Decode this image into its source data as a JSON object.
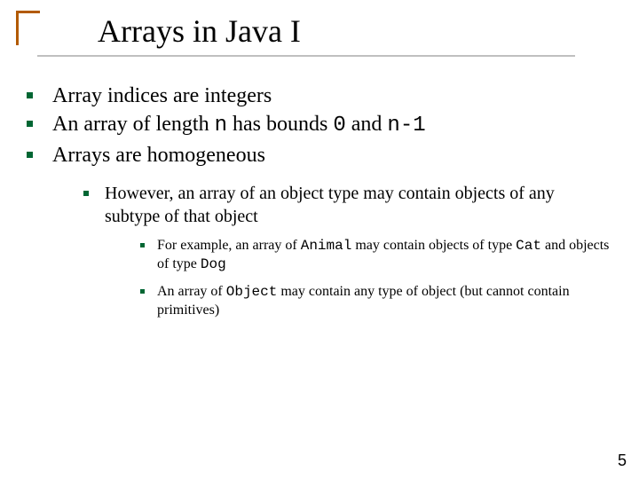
{
  "colors": {
    "accent": "#b25a00",
    "bullet_lvl1": "#006633",
    "bullet_lvl2": "#006633",
    "bullet_lvl3": "#006633",
    "underline": "#c0c0c0",
    "background": "#ffffff",
    "text": "#000000"
  },
  "title": "Arrays in Java I",
  "page_number": "5",
  "points": {
    "p1": "Array indices are integers",
    "p2_a": "An array of length ",
    "p2_n": "n",
    "p2_b": " has bounds ",
    "p2_zero": "0",
    "p2_c": " and ",
    "p2_n1": "n-1",
    "p3": "Arrays are homogeneous",
    "sub1": "However, an array of an object type may contain objects of any subtype of that object",
    "ss1_a": "For example, an array of ",
    "ss1_animal": "Animal",
    "ss1_b": " may contain objects of type ",
    "ss1_cat": "Cat",
    "ss1_c": " and objects of type ",
    "ss1_dog": "Dog",
    "ss2_a": "An array of ",
    "ss2_obj": "Object",
    "ss2_b": " may contain any type of object (but cannot contain primitives)"
  }
}
